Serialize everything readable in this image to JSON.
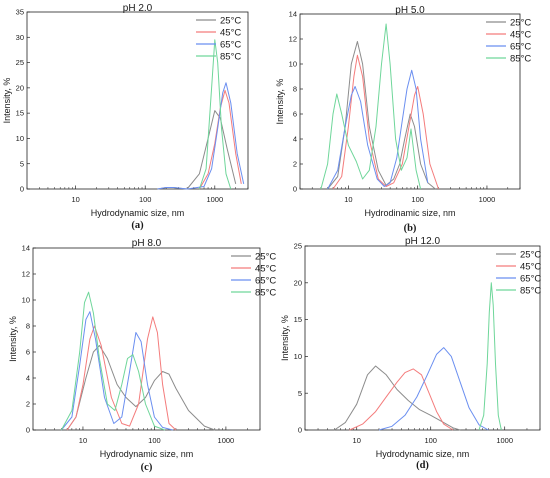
{
  "figure": {
    "panels": [
      {
        "panel_label": "(a)"
      },
      {
        "panel_label": "(b)"
      },
      {
        "panel_label": "(c)"
      },
      {
        "panel_label": "(d)"
      }
    ]
  },
  "chart_data": [
    {
      "type": "line",
      "title": "pH 2.0",
      "xlabel": "Hydrodynamic size, nm",
      "ylabel": "Intensity, %",
      "xscale": "log",
      "xlim": [
        2,
        3000
      ],
      "ylim": [
        0,
        35
      ],
      "xticks": [
        10,
        100,
        1000
      ],
      "xtick_labels": [
        "10",
        "100",
        "1000"
      ],
      "yticks": [
        0,
        5,
        10,
        15,
        20,
        25,
        30,
        35
      ],
      "ytick_labels": [
        "0",
        "5",
        "10",
        "15",
        "20",
        "25",
        "30",
        "35"
      ],
      "grid": false,
      "legend_position": "top-right",
      "series": [
        {
          "name": "25°C",
          "color": "#8c8c8c",
          "x": [
            150,
            200,
            255,
            400,
            600,
            800,
            1000,
            1200,
            1500,
            2000
          ],
          "y": [
            0,
            0.3,
            0.3,
            0,
            3,
            10,
            15.5,
            14,
            8,
            1
          ]
        },
        {
          "name": "45°C",
          "color": "#f47c7c",
          "x": [
            600,
            800,
            1000,
            1200,
            1400,
            1600,
            2000,
            2400
          ],
          "y": [
            0,
            3,
            9,
            16,
            19.5,
            17,
            7,
            1
          ]
        },
        {
          "name": "65°C",
          "color": "#6b8ff0",
          "x": [
            150,
            200,
            255,
            400,
            700,
            900,
            1100,
            1300,
            1450,
            1700,
            2100,
            2600
          ],
          "y": [
            0,
            0.3,
            0.3,
            0,
            0.5,
            4,
            12,
            19,
            21,
            17,
            7,
            1
          ]
        },
        {
          "name": "85°C",
          "color": "#6fd69a",
          "x": [
            600,
            750,
            900,
            1000,
            1100,
            1250,
            1450,
            1700
          ],
          "y": [
            0,
            4,
            20,
            29.5,
            25,
            12,
            3,
            0
          ]
        }
      ]
    },
    {
      "type": "line",
      "title": "pH 5.0",
      "xlabel": "Hydrodinamic size, nm",
      "ylabel": "Intensity, %",
      "xscale": "log",
      "xlim": [
        2,
        3000
      ],
      "ylim": [
        0,
        14
      ],
      "xticks": [
        10,
        100,
        1000
      ],
      "xtick_labels": [
        "10",
        "100",
        "1000"
      ],
      "yticks": [
        0,
        2,
        4,
        6,
        8,
        10,
        12,
        14
      ],
      "ytick_labels": [
        "0",
        "2",
        "4",
        "6",
        "8",
        "10",
        "12",
        "14"
      ],
      "grid": false,
      "legend_position": "top-right",
      "series": [
        {
          "name": "25°C",
          "color": "#8c8c8c",
          "x": [
            5,
            7,
            9,
            11,
            13.5,
            16,
            20,
            27,
            35,
            45,
            55,
            65,
            78,
            90,
            110,
            140,
            180
          ],
          "y": [
            0,
            1,
            5,
            10,
            11.8,
            10,
            5,
            1.5,
            0.3,
            0.8,
            2,
            4,
            6,
            5,
            2,
            0.5,
            0
          ]
        },
        {
          "name": "45°C",
          "color": "#f47c7c",
          "x": [
            6,
            8,
            10,
            12,
            13.5,
            16,
            20,
            27,
            35,
            45,
            60,
            75,
            90,
            100,
            120,
            150,
            200
          ],
          "y": [
            0,
            1,
            5,
            9,
            10.7,
            9,
            4,
            0.8,
            0.2,
            0.5,
            2,
            5,
            7.5,
            8.2,
            6,
            2,
            0
          ]
        },
        {
          "name": "65°C",
          "color": "#6b8ff0",
          "x": [
            5,
            7,
            9,
            11,
            12.5,
            15,
            19,
            26,
            33,
            40,
            50,
            60,
            70,
            82,
            95,
            110,
            140
          ],
          "y": [
            0,
            1.5,
            5,
            7.5,
            8.2,
            7,
            3.5,
            0.8,
            0.2,
            0.5,
            2.5,
            5.5,
            8,
            9.5,
            8,
            4,
            0.5
          ]
        },
        {
          "name": "85°C",
          "color": "#6fd69a",
          "x": [
            4,
            5,
            6,
            6.8,
            8,
            10,
            13,
            16,
            20,
            25,
            30,
            35,
            40,
            48,
            58,
            70,
            80,
            95,
            110
          ],
          "y": [
            0,
            2,
            6,
            7.6,
            6,
            3.5,
            2.2,
            0.8,
            1.5,
            5,
            10,
            13.2,
            10,
            4,
            1.5,
            2.5,
            4.8,
            1.5,
            0
          ]
        }
      ]
    },
    {
      "type": "line",
      "title": "pH 8.0",
      "xlabel": "Hydrodynamic size, nm",
      "ylabel": "Intensity, %",
      "xscale": "log",
      "xlim": [
        2,
        3000
      ],
      "ylim": [
        0,
        14
      ],
      "xticks": [
        10,
        100,
        1000
      ],
      "xtick_labels": [
        "10",
        "100",
        "1000"
      ],
      "yticks": [
        0,
        2,
        4,
        6,
        8,
        10,
        12,
        14
      ],
      "ytick_labels": [
        "0",
        "2",
        "4",
        "6",
        "8",
        "10",
        "12",
        "14"
      ],
      "grid": false,
      "legend_position": "top-right",
      "series": [
        {
          "name": "25°C",
          "color": "#8c8c8c",
          "x": [
            6,
            8,
            11,
            14,
            17,
            22,
            30,
            40,
            55,
            75,
            100,
            130,
            160,
            200,
            300,
            500,
            700
          ],
          "y": [
            0,
            1,
            4,
            6,
            6.5,
            5.5,
            3.5,
            2.5,
            1.8,
            2.5,
            3.8,
            4.5,
            4.3,
            3.2,
            1.5,
            0.3,
            0
          ]
        },
        {
          "name": "45°C",
          "color": "#f47c7c",
          "x": [
            6,
            8,
            10,
            12.5,
            14.5,
            18,
            25,
            35,
            45,
            60,
            80,
            95,
            110,
            130,
            160,
            200
          ],
          "y": [
            0,
            1,
            3.5,
            7,
            8,
            6.5,
            2.5,
            0.5,
            0.3,
            2,
            7,
            8.7,
            7.5,
            3.5,
            0.5,
            0
          ]
        },
        {
          "name": "65°C",
          "color": "#6b8ff0",
          "x": [
            5,
            7,
            9,
            11,
            12.5,
            15,
            20,
            27,
            35,
            45,
            55,
            65,
            80,
            100,
            130,
            180
          ],
          "y": [
            0,
            1,
            5,
            8.5,
            9.1,
            7,
            2.5,
            0.5,
            1,
            4.5,
            7.5,
            6.8,
            3.5,
            1,
            0.2,
            0
          ]
        },
        {
          "name": "85°C",
          "color": "#6fd69a",
          "x": [
            5,
            7,
            9,
            10.5,
            12,
            14,
            17,
            22,
            28,
            35,
            42,
            50,
            60,
            75,
            100,
            140
          ],
          "y": [
            0,
            1.5,
            6,
            9.8,
            10.6,
            9,
            5.5,
            2,
            1.5,
            3.5,
            5.5,
            5.8,
            4.5,
            2,
            0.3,
            0
          ]
        }
      ]
    },
    {
      "type": "line",
      "title": "pH 12.0",
      "xlabel": "Hydrodynamic size, nm",
      "ylabel": "Intensity, %",
      "xscale": "log",
      "xlim": [
        2,
        3000
      ],
      "ylim": [
        0,
        25
      ],
      "xticks": [
        10,
        100,
        1000
      ],
      "xtick_labels": [
        "10",
        "100",
        "1000"
      ],
      "yticks": [
        0,
        5,
        10,
        15,
        20,
        25
      ],
      "ytick_labels": [
        "0",
        "5",
        "10",
        "15",
        "20",
        "25"
      ],
      "grid": false,
      "legend_position": "top-right",
      "series": [
        {
          "name": "25°C",
          "color": "#8c8c8c",
          "x": [
            5,
            7,
            10,
            14,
            18,
            25,
            35,
            50,
            70,
            100,
            150,
            200,
            250
          ],
          "y": [
            0,
            1,
            3.5,
            7.5,
            8.7,
            7.5,
            5.5,
            4,
            2.8,
            2,
            1,
            0.3,
            0
          ]
        },
        {
          "name": "45°C",
          "color": "#f47c7c",
          "x": [
            8,
            12,
            18,
            25,
            35,
            45,
            58,
            75,
            95,
            120,
            150,
            200
          ],
          "y": [
            0,
            0.8,
            2.5,
            4.5,
            6.5,
            7.8,
            8.3,
            7.5,
            5,
            2.5,
            0.8,
            0
          ]
        },
        {
          "name": "65°C",
          "color": "#6b8ff0",
          "x": [
            20,
            30,
            45,
            65,
            90,
            120,
            150,
            190,
            250,
            330,
            450,
            600
          ],
          "y": [
            0,
            0.5,
            2,
            4.5,
            7.5,
            10.3,
            11.2,
            10,
            6.5,
            3,
            0.7,
            0
          ]
        },
        {
          "name": "85°C",
          "color": "#6fd69a",
          "x": [
            450,
            520,
            580,
            620,
            660,
            700,
            750,
            820,
            900
          ],
          "y": [
            0,
            2,
            9,
            16,
            20,
            17,
            9,
            2,
            0
          ]
        }
      ]
    }
  ]
}
